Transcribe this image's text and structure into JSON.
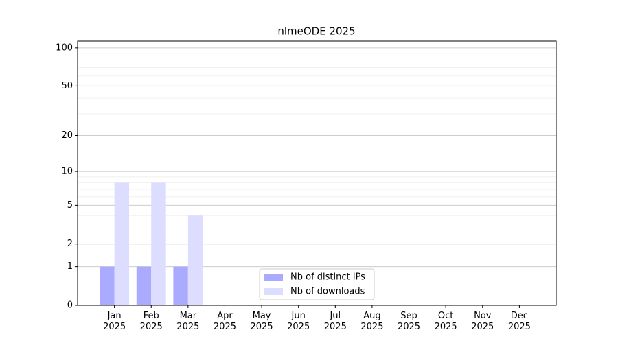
{
  "chart_data": {
    "type": "bar",
    "title": "nlmeODE 2025",
    "scale": "log1p",
    "categories": [
      "Jan\n2025",
      "Feb\n2025",
      "Mar\n2025",
      "Apr\n2025",
      "May\n2025",
      "Jun\n2025",
      "Jul\n2025",
      "Aug\n2025",
      "Sep\n2025",
      "Oct\n2025",
      "Nov\n2025",
      "Dec\n2025"
    ],
    "series": [
      {
        "name": "Nb of distinct IPs",
        "color": "#aaaaff",
        "values": [
          1,
          1,
          1,
          0,
          0,
          0,
          0,
          0,
          0,
          0,
          0,
          0
        ]
      },
      {
        "name": "Nb of downloads",
        "color": "#ddddff",
        "values": [
          8,
          8,
          4,
          0,
          0,
          0,
          0,
          0,
          0,
          0,
          0,
          0
        ]
      }
    ],
    "ylim": [
      0,
      113
    ],
    "yticks": [
      0,
      1,
      2,
      5,
      10,
      20,
      50,
      100
    ],
    "minor_yticks": [
      3,
      4,
      6,
      7,
      8,
      9,
      30,
      40,
      60,
      70,
      80,
      90
    ],
    "grid": true,
    "legend": "lower center"
  }
}
